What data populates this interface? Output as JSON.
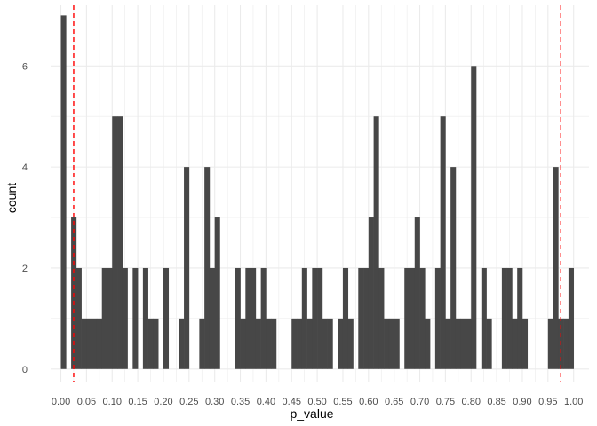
{
  "chart_data": {
    "type": "bar",
    "title": "",
    "xlabel": "p_value",
    "ylabel": "count",
    "xlim": [
      -0.02,
      1.03
    ],
    "ylim": [
      -0.25,
      7.2
    ],
    "bin_width": 0.01,
    "x_ticks": [
      0.0,
      0.05,
      0.1,
      0.15,
      0.2,
      0.25,
      0.3,
      0.35,
      0.4,
      0.45,
      0.5,
      0.55,
      0.6,
      0.65,
      0.7,
      0.75,
      0.8,
      0.85,
      0.9,
      0.95,
      1.0
    ],
    "x_tick_labels": [
      "0.00",
      "0.05",
      "0.10",
      "0.15",
      "0.20",
      "0.25",
      "0.30",
      "0.35",
      "0.40",
      "0.45",
      "0.50",
      "0.55",
      "0.60",
      "0.65",
      "0.70",
      "0.75",
      "0.80",
      "0.85",
      "0.90",
      "0.95",
      "1.00"
    ],
    "y_ticks": [
      0,
      2,
      4,
      6
    ],
    "y_tick_labels": [
      "0",
      "2",
      "4",
      "6"
    ],
    "bins": [
      [
        0.0,
        7
      ],
      [
        0.01,
        0
      ],
      [
        0.02,
        3
      ],
      [
        0.03,
        2
      ],
      [
        0.04,
        1
      ],
      [
        0.05,
        1
      ],
      [
        0.06,
        1
      ],
      [
        0.07,
        1
      ],
      [
        0.08,
        2
      ],
      [
        0.09,
        2
      ],
      [
        0.1,
        5
      ],
      [
        0.11,
        5
      ],
      [
        0.12,
        2
      ],
      [
        0.13,
        0
      ],
      [
        0.14,
        2
      ],
      [
        0.15,
        0
      ],
      [
        0.16,
        2
      ],
      [
        0.17,
        1
      ],
      [
        0.18,
        1
      ],
      [
        0.19,
        0
      ],
      [
        0.2,
        2
      ],
      [
        0.21,
        0
      ],
      [
        0.22,
        0
      ],
      [
        0.23,
        1
      ],
      [
        0.24,
        4
      ],
      [
        0.25,
        0
      ],
      [
        0.26,
        0
      ],
      [
        0.27,
        1
      ],
      [
        0.28,
        4
      ],
      [
        0.29,
        2
      ],
      [
        0.3,
        3
      ],
      [
        0.31,
        0
      ],
      [
        0.32,
        0
      ],
      [
        0.33,
        0
      ],
      [
        0.34,
        2
      ],
      [
        0.35,
        1
      ],
      [
        0.36,
        2
      ],
      [
        0.37,
        2
      ],
      [
        0.38,
        1
      ],
      [
        0.39,
        2
      ],
      [
        0.4,
        1
      ],
      [
        0.41,
        1
      ],
      [
        0.42,
        0
      ],
      [
        0.43,
        0
      ],
      [
        0.44,
        0
      ],
      [
        0.45,
        1
      ],
      [
        0.46,
        1
      ],
      [
        0.47,
        2
      ],
      [
        0.48,
        1
      ],
      [
        0.49,
        2
      ],
      [
        0.5,
        2
      ],
      [
        0.51,
        1
      ],
      [
        0.52,
        1
      ],
      [
        0.53,
        0
      ],
      [
        0.54,
        1
      ],
      [
        0.55,
        2
      ],
      [
        0.56,
        1
      ],
      [
        0.57,
        0
      ],
      [
        0.58,
        2
      ],
      [
        0.59,
        2
      ],
      [
        0.6,
        3
      ],
      [
        0.61,
        5
      ],
      [
        0.62,
        2
      ],
      [
        0.63,
        1
      ],
      [
        0.64,
        1
      ],
      [
        0.65,
        1
      ],
      [
        0.66,
        0
      ],
      [
        0.67,
        2
      ],
      [
        0.68,
        2
      ],
      [
        0.69,
        3
      ],
      [
        0.7,
        2
      ],
      [
        0.71,
        1
      ],
      [
        0.72,
        0
      ],
      [
        0.73,
        2
      ],
      [
        0.74,
        5
      ],
      [
        0.75,
        1
      ],
      [
        0.76,
        4
      ],
      [
        0.77,
        1
      ],
      [
        0.78,
        1
      ],
      [
        0.79,
        1
      ],
      [
        0.8,
        6
      ],
      [
        0.81,
        0
      ],
      [
        0.82,
        2
      ],
      [
        0.83,
        1
      ],
      [
        0.84,
        0
      ],
      [
        0.85,
        0
      ],
      [
        0.86,
        2
      ],
      [
        0.87,
        2
      ],
      [
        0.88,
        1
      ],
      [
        0.89,
        2
      ],
      [
        0.9,
        1
      ],
      [
        0.91,
        0
      ],
      [
        0.92,
        0
      ],
      [
        0.93,
        0
      ],
      [
        0.94,
        0
      ],
      [
        0.95,
        1
      ],
      [
        0.96,
        4
      ],
      [
        0.97,
        1
      ],
      [
        0.98,
        1
      ],
      [
        0.99,
        2
      ]
    ],
    "reference_lines": [
      {
        "x": 0.025,
        "style": "dashed"
      },
      {
        "x": 0.975,
        "style": "dashed"
      }
    ],
    "grid": true,
    "legend": "none"
  },
  "colors": {
    "bar": "#474747",
    "grid": "#ebebeb",
    "reference_line": "#ff0000",
    "tick_text": "#4d4d4d",
    "axis_title": "#000000"
  }
}
